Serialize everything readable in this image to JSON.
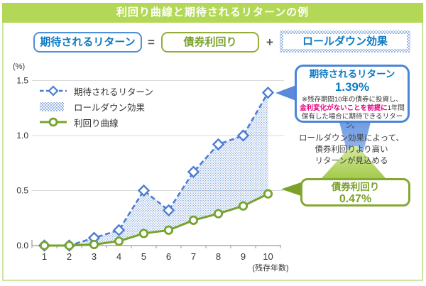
{
  "page": {
    "title": "利回り曲線と期待されるリターンの例"
  },
  "formula": {
    "term1": "期待されるリターン",
    "equals": "=",
    "term2": "債券利回り",
    "plus": "+",
    "term3": "ロールダウン効果"
  },
  "chart_data": {
    "type": "line",
    "x": [
      1,
      2,
      3,
      4,
      5,
      6,
      7,
      8,
      9,
      10
    ],
    "xlabel": "(残存年数)",
    "ylabel": "(%)",
    "ylim": [
      0,
      1.5
    ],
    "yticks": [
      0.0,
      0.5,
      1.0,
      1.5
    ],
    "ytick_labels": [
      "0.0",
      "0.5",
      "1.0",
      "1.5"
    ],
    "grid": true,
    "legend_position": "top-left",
    "series": [
      {
        "name": "期待されるリターン",
        "style": "dashed",
        "marker": "diamond",
        "color": "#4d7dd2",
        "values": [
          0.0,
          0.0,
          0.07,
          0.14,
          0.5,
          0.32,
          0.67,
          0.92,
          1.0,
          1.39
        ]
      },
      {
        "name": "ロールダウン効果",
        "style": "area-between",
        "pattern": "dots",
        "color": "#89a9dc"
      },
      {
        "name": "利回り曲線",
        "style": "solid",
        "marker": "circle",
        "color": "#76a32d",
        "values": [
          0.0,
          0.0,
          0.01,
          0.04,
          0.11,
          0.14,
          0.23,
          0.29,
          0.36,
          0.47
        ]
      }
    ]
  },
  "expected_callout": {
    "title": "期待されるリターン",
    "value": "1.39%",
    "note_line1": "※残存期間10年の債券に投資し、",
    "note_highlight": "金利変化がないことを前提に",
    "note_line2_rest": "1年間",
    "note_line3": "保有した場合に期待できるリターン。"
  },
  "rolldown_note": {
    "line1": "ロールダウン効果によって、",
    "line2": "債券利回りより高い",
    "line3": "リターンが見込める"
  },
  "yield_callout": {
    "title": "債券利回り",
    "value": "0.47%"
  },
  "colors": {
    "header_bg": "#b3d857",
    "frame_border": "#cfe5a2",
    "blue_text": "#0d7ac4",
    "blue_line": "#4d7dd2",
    "blue_border": "#4f8ed8",
    "green_line": "#76a32d",
    "green_text": "#7ba12b",
    "magenta": "#e4007f",
    "grid": "#d9d9d9",
    "axis": "#999999",
    "dot_fill": "#89a9dc"
  }
}
